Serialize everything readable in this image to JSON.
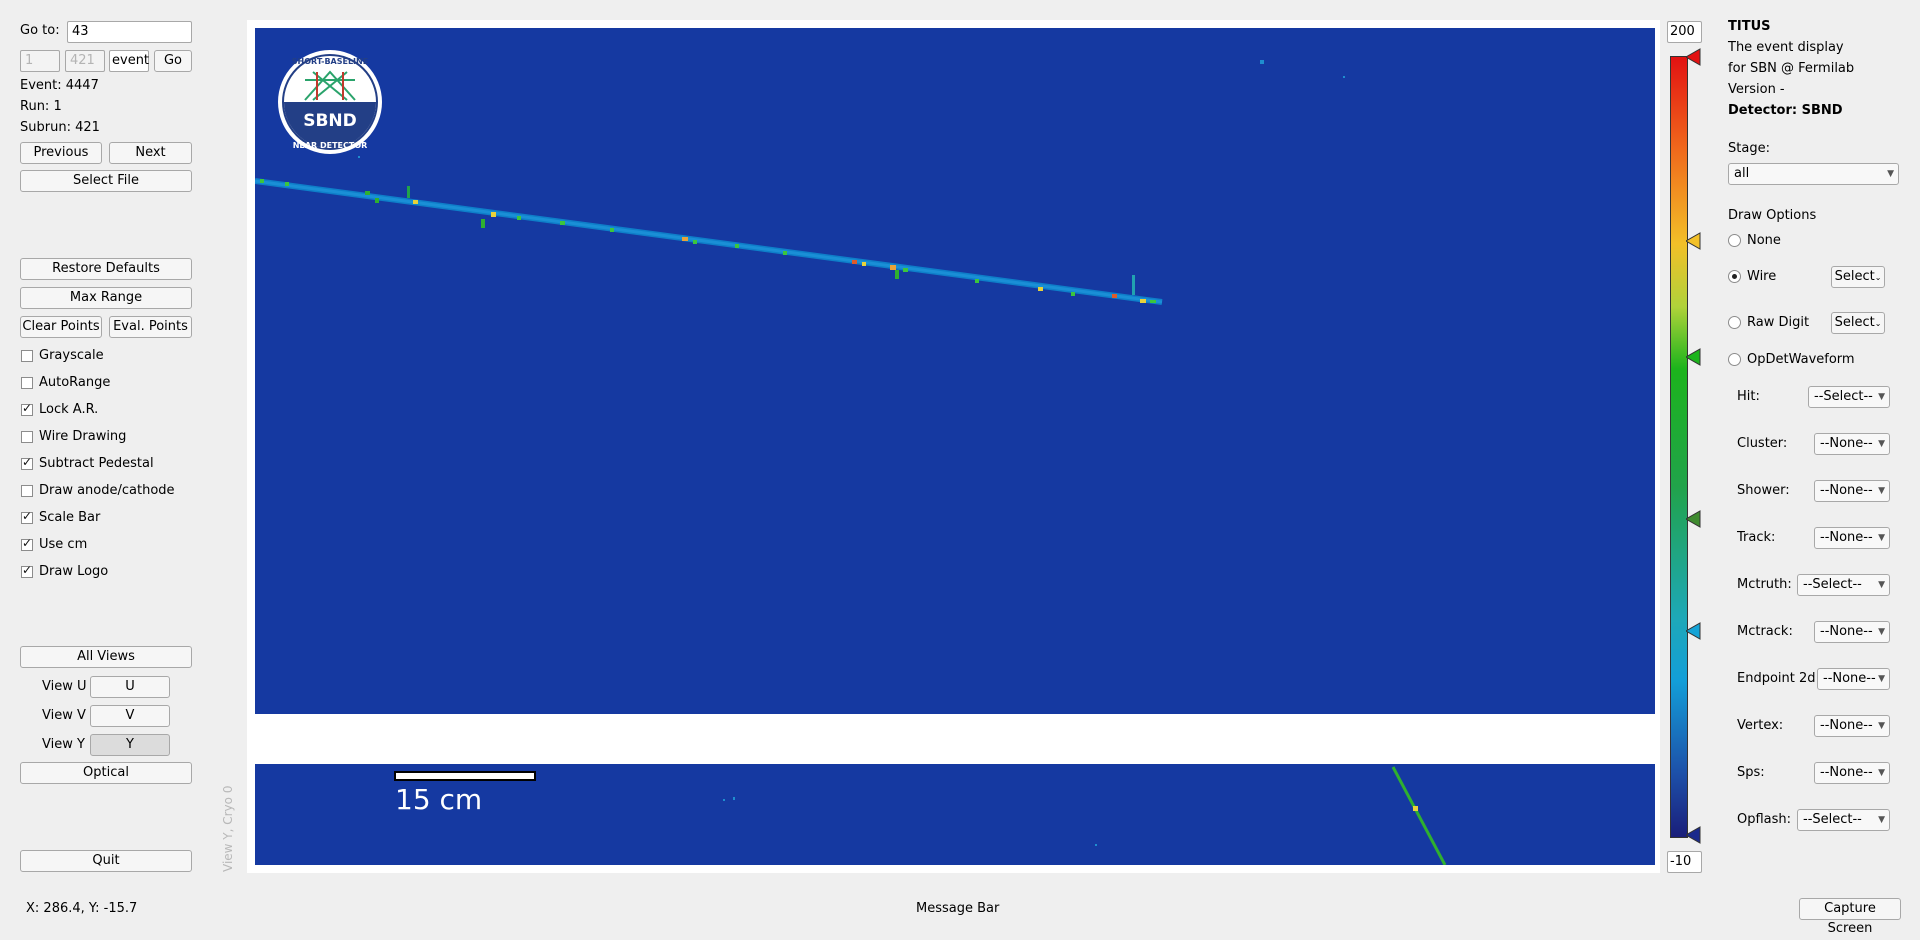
{
  "nav": {
    "goto_label": "Go to:",
    "goto_value": "43",
    "run_field": "1",
    "subrun_field": "421",
    "unit_field": "event",
    "go_label": "Go",
    "event_text": "Event: 4447",
    "run_text": "Run: 1",
    "subrun_text": "Subrun: 421",
    "previous": "Previous",
    "next": "Next",
    "select_file": "Select File"
  },
  "controls": {
    "restore_defaults": "Restore Defaults",
    "max_range": "Max Range",
    "clear_points": "Clear Points",
    "eval_points": "Eval. Points",
    "options": [
      {
        "label": "Grayscale",
        "checked": false
      },
      {
        "label": "AutoRange",
        "checked": false
      },
      {
        "label": "Lock A.R.",
        "checked": true
      },
      {
        "label": "Wire Drawing",
        "checked": false
      },
      {
        "label": "Subtract Pedestal",
        "checked": true
      },
      {
        "label": "Draw anode/cathode",
        "checked": false
      },
      {
        "label": "Scale Bar",
        "checked": true
      },
      {
        "label": "Use cm",
        "checked": true
      },
      {
        "label": "Draw Logo",
        "checked": true
      }
    ]
  },
  "views": {
    "all_views": "All Views",
    "view_u_label": "View U",
    "view_u_btn": "U",
    "view_v_label": "View V",
    "view_v_btn": "V",
    "view_y_label": "View Y",
    "view_y_btn": "Y",
    "optical": "Optical",
    "quit": "Quit",
    "vertical_label": "View Y, Cryo 0"
  },
  "display": {
    "logo_top": "SHORT-BASELINE",
    "logo_center": "SBND",
    "logo_bottom": "NEAR DETECTOR",
    "scale_bar_label": "15 cm",
    "colors": {
      "background": "#1539a1",
      "track": "#1a8fd6"
    }
  },
  "colorbar": {
    "max": "200",
    "min": "-10",
    "handle_colors": [
      "#e21212",
      "#f2c028",
      "#1cb41c",
      "#3f8a2f",
      "#15a3d6",
      "#1a2a8c"
    ]
  },
  "info": {
    "app_name": "TITUS",
    "desc1": "The event display",
    "desc2": "for SBN @ Fermilab",
    "version": "Version -",
    "detector": "Detector: SBND",
    "stage_label": "Stage:",
    "stage_value": "all",
    "draw_options": "Draw Options",
    "radios": [
      {
        "label": "None",
        "checked": false
      },
      {
        "label": "Wire",
        "checked": true
      },
      {
        "label": "Raw Digit",
        "checked": false
      },
      {
        "label": "OpDetWaveform",
        "checked": false
      }
    ],
    "wire_select": "Select",
    "rawdigit_select": "Select",
    "products": [
      {
        "label": "Hit:",
        "value": "--Select--"
      },
      {
        "label": "Cluster:",
        "value": "--None--"
      },
      {
        "label": "Shower:",
        "value": "--None--"
      },
      {
        "label": "Track:",
        "value": "--None--"
      },
      {
        "label": "Mctruth:",
        "value": "--Select--"
      },
      {
        "label": "Mctrack:",
        "value": "--None--"
      },
      {
        "label": "Endpoint 2d:",
        "value": "--None--"
      },
      {
        "label": "Vertex:",
        "value": "--None--"
      },
      {
        "label": "Sps:",
        "value": "--None--"
      },
      {
        "label": "Opflash:",
        "value": "--Select--"
      }
    ]
  },
  "status": {
    "coords": "X: 286.4, Y: -15.7",
    "message": "Message Bar",
    "capture": "Capture Screen"
  }
}
